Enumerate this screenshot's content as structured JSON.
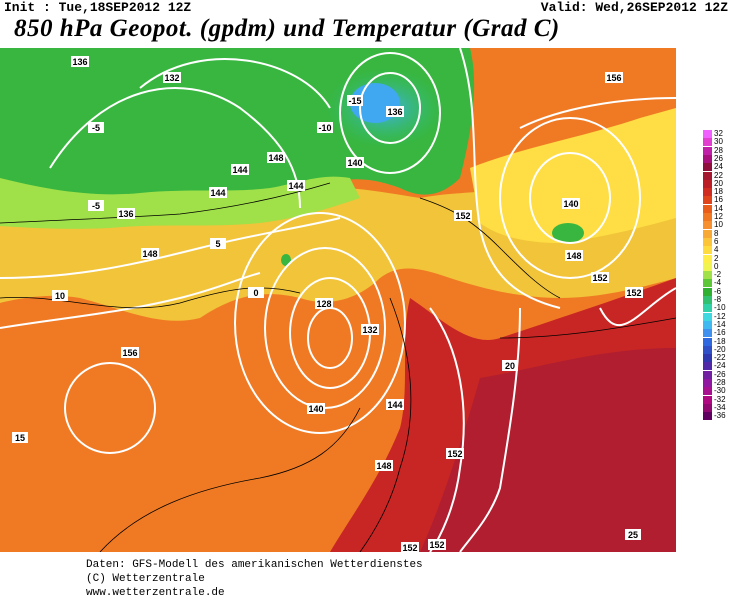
{
  "header": {
    "init": "Init : Tue,18SEP2012 12Z",
    "valid": "Valid: Wed,26SEP2012 12Z",
    "title": "850 hPa Geopot. (gpdm) und Temperatur (Grad C)"
  },
  "legend": {
    "levels": [
      "32",
      "30",
      "28",
      "26",
      "24",
      "22",
      "20",
      "18",
      "16",
      "14",
      "12",
      "10",
      "8",
      "6",
      "4",
      "2",
      "0",
      "-2",
      "-4",
      "-6",
      "-8",
      "-10",
      "-12",
      "-14",
      "-16",
      "-18",
      "-20",
      "-22",
      "-24",
      "-26",
      "-28",
      "-30",
      "-32",
      "-34",
      "-36"
    ],
    "colors": [
      "#f060ff",
      "#e23ed0",
      "#c020a8",
      "#a8107e",
      "#8e0e3c",
      "#a41830",
      "#bc1e26",
      "#d02c20",
      "#e0441a",
      "#ea5c1a",
      "#f07824",
      "#f69030",
      "#f8a834",
      "#fcc438",
      "#fedc40",
      "#ffee48",
      "#f0f450",
      "#a0e048",
      "#5cc838",
      "#30b030",
      "#30c070",
      "#30d0a8",
      "#40d8e0",
      "#40b8f0",
      "#4090f0",
      "#3068e0",
      "#3050c8",
      "#3038b0",
      "#5028a8",
      "#7020a0",
      "#9018a0",
      "#a81090",
      "#b00880",
      "#900870",
      "#600060"
    ]
  },
  "map": {
    "geopotential_labels": [
      "136",
      "132",
      "136",
      "140",
      "144",
      "148",
      "152",
      "156",
      "128",
      "132",
      "140",
      "144",
      "148",
      "152",
      "156",
      "136",
      "140",
      "148",
      "152",
      "144",
      "148",
      "152",
      "144",
      "152",
      "152"
    ],
    "temperature_labels": [
      "-5",
      "-10",
      "-15",
      "-5",
      "0",
      "5",
      "10",
      "15",
      "20",
      "25"
    ]
  },
  "footer": {
    "line1": "Daten: GFS-Modell des amerikanischen Wetterdienstes",
    "line2": "(C) Wetterzentrale",
    "line3": "www.wetterzentrale.de"
  }
}
